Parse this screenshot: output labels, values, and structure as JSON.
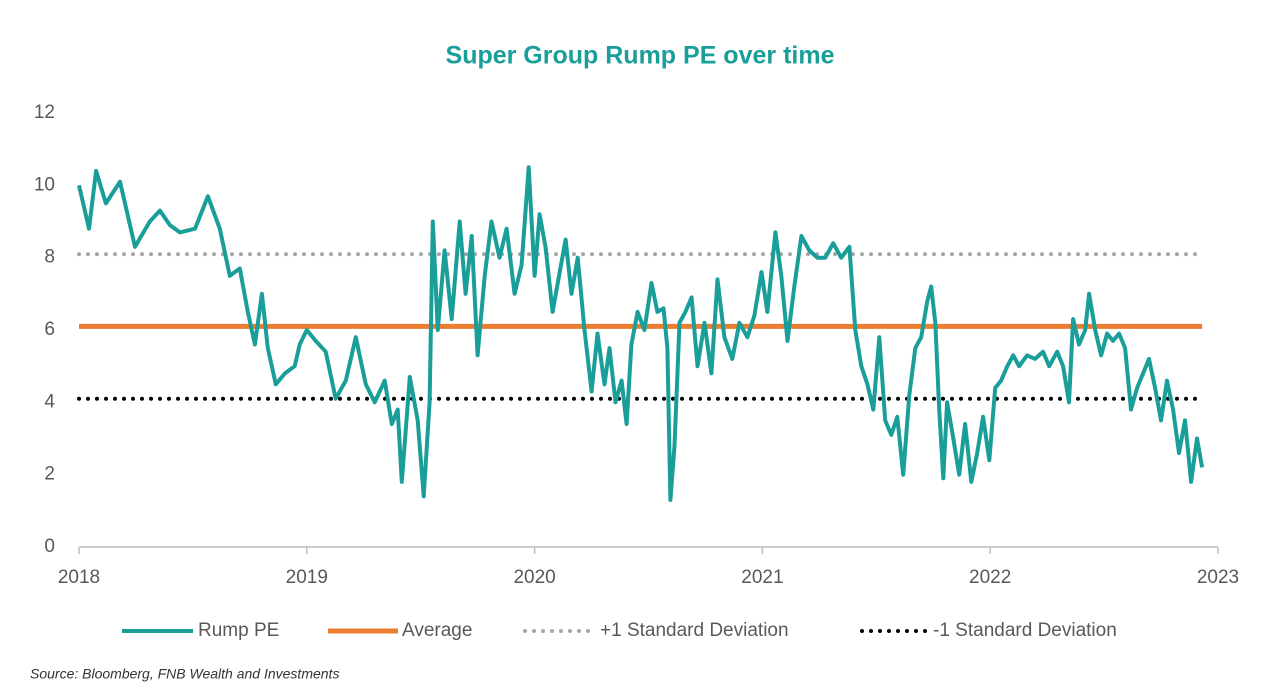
{
  "chart_data": {
    "type": "line",
    "title": "Super Group Rump PE over time",
    "source": "Source: Bloomberg, FNB Wealth and Investments",
    "xlim": [
      2018,
      2023
    ],
    "xticks": [
      2018,
      2019,
      2020,
      2021,
      2022,
      2023
    ],
    "ylim": [
      0,
      12
    ],
    "yticks": [
      0,
      2,
      4,
      6,
      8,
      10,
      12
    ],
    "grid": false,
    "legend": "bottom",
    "series": [
      {
        "name": "Rump PE",
        "color": "#1a9e9a",
        "style": "solid",
        "x": [
          2018.0,
          2018.044,
          2018.075,
          2018.118,
          2018.18,
          2018.246,
          2018.311,
          2018.355,
          2018.399,
          2018.443,
          2018.509,
          2018.566,
          2018.618,
          2018.662,
          2018.706,
          2018.741,
          2018.772,
          2018.803,
          2018.829,
          2018.864,
          2018.904,
          2018.947,
          2018.969,
          2019.0,
          2019.039,
          2019.083,
          2019.127,
          2019.171,
          2019.215,
          2019.259,
          2019.298,
          2019.342,
          2019.373,
          2019.399,
          2019.417,
          2019.452,
          2019.487,
          2019.513,
          2019.539,
          2019.553,
          2019.575,
          2019.605,
          2019.636,
          2019.671,
          2019.697,
          2019.724,
          2019.75,
          2019.781,
          2019.811,
          2019.846,
          2019.877,
          2019.912,
          2019.943,
          2019.974,
          2020.0,
          2020.022,
          2020.048,
          2020.079,
          2020.11,
          2020.136,
          2020.162,
          2020.189,
          2020.219,
          2020.25,
          2020.276,
          2020.307,
          2020.329,
          2020.355,
          2020.382,
          2020.404,
          2020.425,
          2020.452,
          2020.482,
          2020.513,
          2020.539,
          2020.566,
          2020.583,
          2020.596,
          2020.614,
          2020.636,
          2020.662,
          2020.689,
          2020.715,
          2020.746,
          2020.776,
          2020.803,
          2020.833,
          2020.868,
          2020.899,
          2020.934,
          2020.965,
          2020.996,
          2021.022,
          2021.057,
          2021.083,
          2021.11,
          2021.14,
          2021.171,
          2021.206,
          2021.241,
          2021.276,
          2021.311,
          2021.346,
          2021.382,
          2021.408,
          2021.434,
          2021.461,
          2021.487,
          2021.513,
          2021.539,
          2021.566,
          2021.592,
          2021.618,
          2021.645,
          2021.671,
          2021.697,
          2021.724,
          2021.741,
          2021.759,
          2021.776,
          2021.794,
          2021.811,
          2021.838,
          2021.864,
          2021.89,
          2021.917,
          2021.943,
          2021.969,
          2021.996,
          2022.022,
          2022.048,
          2022.075,
          2022.101,
          2022.127,
          2022.162,
          2022.197,
          2022.232,
          2022.259,
          2022.294,
          2022.32,
          2022.346,
          2022.364,
          2022.39,
          2022.417,
          2022.434,
          2022.461,
          2022.487,
          2022.513,
          2022.539,
          2022.566,
          2022.592,
          2022.618,
          2022.645,
          2022.671,
          2022.697,
          2022.724,
          2022.75,
          2022.776,
          2022.803,
          2022.829,
          2022.855,
          2022.882,
          2022.908,
          2022.93
        ],
        "values": [
          10.0,
          8.8,
          10.4,
          9.5,
          10.1,
          8.3,
          9.0,
          9.3,
          8.9,
          8.7,
          8.8,
          9.7,
          8.8,
          7.5,
          7.7,
          6.5,
          5.6,
          7.0,
          5.5,
          4.5,
          4.8,
          5.0,
          5.6,
          6.0,
          5.7,
          5.4,
          4.1,
          4.6,
          5.8,
          4.5,
          4.0,
          4.6,
          3.4,
          3.8,
          1.8,
          4.7,
          3.5,
          1.4,
          4.0,
          9.0,
          6.0,
          8.2,
          6.3,
          9.0,
          7.0,
          8.6,
          5.3,
          7.5,
          9.0,
          8.0,
          8.8,
          7.0,
          7.8,
          10.5,
          7.5,
          9.2,
          8.3,
          6.5,
          7.6,
          8.5,
          7.0,
          8.0,
          6.0,
          4.3,
          5.9,
          4.5,
          5.5,
          4.0,
          4.6,
          3.4,
          5.6,
          6.5,
          6.0,
          7.3,
          6.5,
          6.6,
          5.5,
          1.3,
          2.8,
          6.2,
          6.5,
          6.9,
          5.0,
          6.2,
          4.8,
          7.4,
          5.8,
          5.2,
          6.2,
          5.8,
          6.4,
          7.6,
          6.5,
          8.7,
          7.5,
          5.7,
          7.2,
          8.6,
          8.2,
          8.0,
          8.0,
          8.4,
          8.0,
          8.3,
          6.0,
          5.0,
          4.5,
          3.8,
          5.8,
          3.5,
          3.1,
          3.6,
          2.0,
          4.2,
          5.5,
          5.8,
          6.8,
          7.2,
          6.2,
          3.8,
          1.9,
          4.0,
          3.0,
          2.0,
          3.4,
          1.8,
          2.6,
          3.6,
          2.4,
          4.4,
          4.6,
          5.0,
          5.3,
          5.0,
          5.3,
          5.2,
          5.4,
          5.0,
          5.4,
          5.0,
          4.0,
          6.3,
          5.6,
          6.0,
          7.0,
          6.0,
          5.3,
          5.9,
          5.7,
          5.9,
          5.5,
          3.8,
          4.4,
          4.8,
          5.2,
          4.4,
          3.5,
          4.6,
          3.8,
          2.6,
          3.5,
          1.8,
          3.0,
          2.2
        ]
      },
      {
        "name": "Average",
        "color": "#ed7d31",
        "style": "solid",
        "x": [
          2018,
          2022.93
        ],
        "values": [
          6.1,
          6.1
        ]
      },
      {
        "name": "+1 Standard Deviation",
        "color": "#a6a6a6",
        "style": "dotted",
        "x": [
          2018,
          2022.93
        ],
        "values": [
          8.1,
          8.1
        ]
      },
      {
        "name": "-1 Standard Deviation",
        "color": "#000000",
        "style": "dotted",
        "x": [
          2018,
          2022.93
        ],
        "values": [
          4.1,
          4.1
        ]
      }
    ]
  }
}
